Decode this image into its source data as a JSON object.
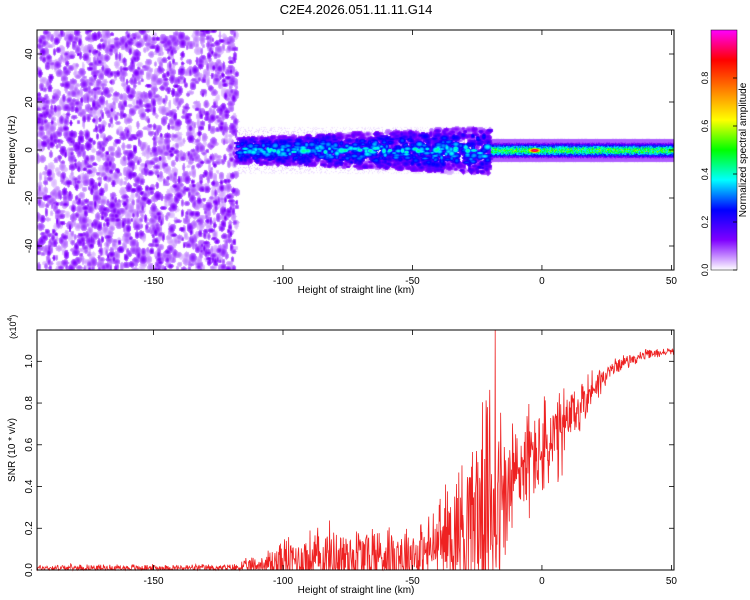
{
  "chart_data": [
    {
      "type": "heatmap",
      "title": "C2E4.2026.051.11.11.G14",
      "xlabel": "Height of straight line (km)",
      "ylabel": "Frequency (Hz)",
      "xlim": [
        -195,
        51
      ],
      "ylim": [
        -50,
        50
      ],
      "xticks": [
        -150,
        -100,
        -50,
        0,
        50
      ],
      "yticks": [
        -40,
        -20,
        0,
        20,
        40
      ],
      "colorbar": {
        "label": "Normalized spectral amplitude",
        "range": [
          0.0,
          1.0
        ],
        "ticks": [
          0.0,
          0.2,
          0.4,
          0.6,
          0.8
        ],
        "colors": [
          "#ffffff",
          "#7f00ff",
          "#0000ff",
          "#00ffff",
          "#00ff00",
          "#ffff00",
          "#ff8000",
          "#ff0000",
          "#ff00ff"
        ]
      },
      "features": [
        {
          "name": "scattered noise",
          "x_range": [
            -195,
            -118
          ],
          "freq_range": [
            -50,
            50
          ],
          "amplitude": 0.1
        },
        {
          "name": "diffuse band",
          "x_range": [
            -118,
            -20
          ],
          "freq_center": 0,
          "freq_halfwidth": 8,
          "amplitude": 0.3
        },
        {
          "name": "narrow band",
          "x_range": [
            -20,
            51
          ],
          "freq_center": 0,
          "freq_halfwidth": 3,
          "amplitude": 0.5
        },
        {
          "name": "peak",
          "x": -3,
          "freq": 0,
          "amplitude": 0.98
        }
      ]
    },
    {
      "type": "line",
      "xlabel": "Height of straight line (km)",
      "ylabel": "SNR (10 * v/v)",
      "y_multiplier_label": "(x10",
      "y_multiplier_exp": "4",
      "y_multiplier_close": ")",
      "xlim": [
        -195,
        51
      ],
      "ylim": [
        0.0,
        1.15
      ],
      "xticks": [
        -150,
        -100,
        -50,
        0,
        50
      ],
      "yticks": [
        "0.0",
        "0.2",
        "0.4",
        "0.6",
        "0.8",
        "1.0"
      ],
      "color": "#ee2222",
      "series": [
        {
          "name": "SNR",
          "envelope": {
            "x": [
              -195,
              -150,
              -120,
              -110,
              -100,
              -80,
              -60,
              -45,
              -38,
              -32,
              -28,
              -22,
              -18,
              -15,
              -12,
              -8,
              -3,
              5,
              10,
              20,
              30,
              40,
              51
            ],
            "base": [
              0.01,
              0.01,
              0.01,
              0.02,
              0.04,
              0.06,
              0.07,
              0.08,
              0.15,
              0.2,
              0.25,
              0.3,
              0.35,
              0.3,
              0.4,
              0.5,
              0.55,
              0.6,
              0.7,
              0.88,
              0.99,
              1.03,
              1.05
            ],
            "amp": [
              0.02,
              0.02,
              0.02,
              0.06,
              0.14,
              0.2,
              0.2,
              0.18,
              0.28,
              0.4,
              0.55,
              0.55,
              0.8,
              0.5,
              0.45,
              0.35,
              0.3,
              0.3,
              0.22,
              0.1,
              0.04,
              0.03,
              0.02
            ]
          },
          "peak": {
            "x": -18,
            "y": 1.15
          }
        }
      ]
    }
  ]
}
